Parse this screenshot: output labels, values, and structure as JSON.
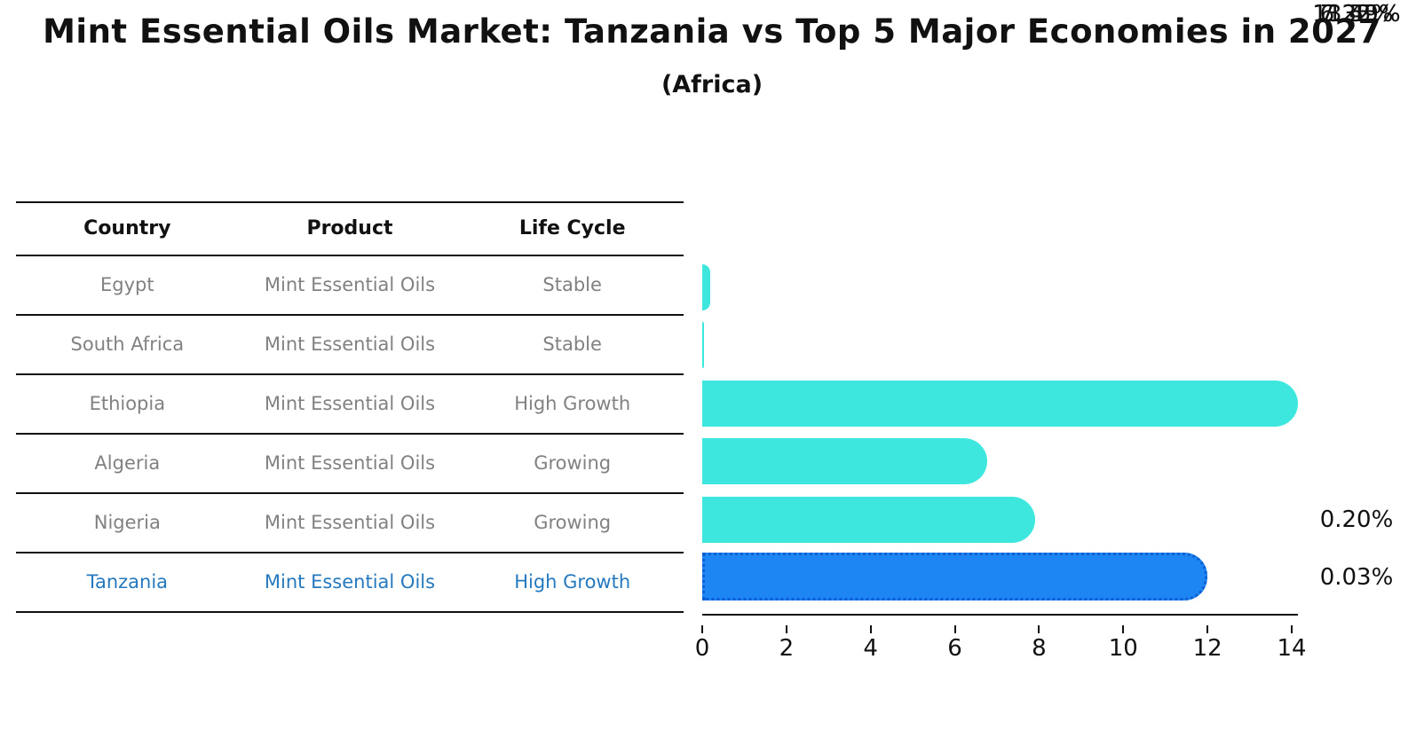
{
  "title": "Mint Essential Oils Market: Tanzania vs Top 5 Major Economies in 2027",
  "subtitle": "(Africa)",
  "table": {
    "headers": [
      "Country",
      "Product",
      "Life Cycle"
    ],
    "rows": [
      {
        "country": "Egypt",
        "product": "Mint Essential Oils",
        "life_cycle": "Stable",
        "highlight": false
      },
      {
        "country": "South Africa",
        "product": "Mint Essential Oils",
        "life_cycle": "Stable",
        "highlight": false
      },
      {
        "country": "Ethiopia",
        "product": "Mint Essential Oils",
        "life_cycle": "High Growth",
        "highlight": false
      },
      {
        "country": "Algeria",
        "product": "Mint Essential Oils",
        "life_cycle": "Growing",
        "highlight": false
      },
      {
        "country": "Nigeria",
        "product": "Mint Essential Oils",
        "life_cycle": "Growing",
        "highlight": false
      },
      {
        "country": "Tanzania",
        "product": "Mint Essential Oils",
        "life_cycle": "High Growth",
        "highlight": true
      }
    ]
  },
  "chart_data": {
    "type": "bar",
    "orientation": "horizontal",
    "title": "Mint Essential Oils Market: Tanzania vs Top 5 Major Economies in 2027 (Africa)",
    "categories": [
      "Egypt",
      "South Africa",
      "Ethiopia",
      "Algeria",
      "Nigeria",
      "Tanzania"
    ],
    "values": [
      0.2,
      0.03,
      13.59,
      6.22,
      7.35,
      11.45
    ],
    "value_labels": [
      "0.20%",
      "0.03%",
      "13.59%",
      "6.22%",
      "7.35%",
      "11.45%"
    ],
    "xlabel": "",
    "ylabel": "",
    "xlim": [
      0,
      14
    ],
    "xticks": [
      0,
      2,
      4,
      6,
      8,
      10,
      12,
      14
    ],
    "grid": false,
    "legend": null,
    "highlight_index": 5
  },
  "colors": {
    "bar_fill": "#3ee7de",
    "highlight_fill": "#1e86f2",
    "highlight_border": "#0d5ed2",
    "row_text": "#818181",
    "highlight_text": "#2579be",
    "header_text": "#111111",
    "axis": "#111111"
  }
}
